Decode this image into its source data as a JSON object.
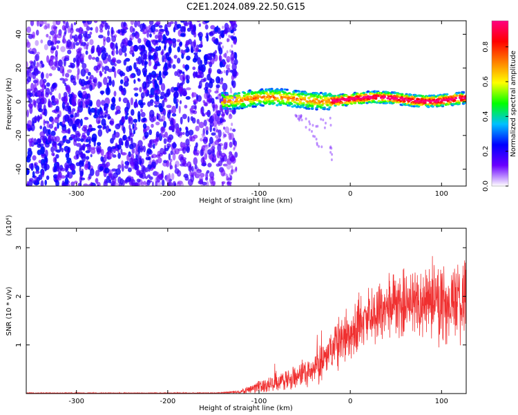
{
  "figure": {
    "title": "C2E1.2024.089.22.50.G15"
  },
  "chart_data": [
    {
      "type": "heatmap",
      "title": "C2E1.2024.089.22.50.G15",
      "xlabel": "Height of straight line (km)",
      "ylabel": "Frequency (Hz)",
      "xlim": [
        -355,
        127
      ],
      "ylim": [
        -50,
        48
      ],
      "x_ticks": [
        -300,
        -200,
        -100,
        0,
        100
      ],
      "y_ticks": [
        -40,
        -20,
        0,
        20,
        40
      ],
      "x_tick_labels": [
        "-300",
        "-200",
        "-100",
        "0",
        "100"
      ],
      "y_tick_labels": [
        "-40",
        "-20",
        "0",
        "20",
        "40"
      ],
      "colorbar": {
        "label": "Normalized spectral amplitude",
        "range": [
          0,
          0.95
        ],
        "ticks": [
          0.0,
          0.2,
          0.4,
          0.6,
          0.8
        ],
        "tick_labels": [
          "0.0",
          "0.2",
          "0.4",
          "0.6",
          "0.8"
        ],
        "colormap": [
          "#ffffff",
          "#6a00ff",
          "#0000ff",
          "#00c0ff",
          "#00ff00",
          "#ffff00",
          "#ff8000",
          "#ff0000",
          "#ff0080"
        ]
      },
      "regions": [
        {
          "x_range": [
            -355,
            -140
          ],
          "y_range": [
            -50,
            48
          ],
          "description_values": "broadband noise, amplitude 0.0-0.2"
        },
        {
          "x_range": [
            -140,
            127
          ],
          "y_range": [
            -5,
            6
          ],
          "description_values": "narrow signal band centered near 0-2 Hz, amplitude 0.3-0.95"
        }
      ],
      "grid": false
    },
    {
      "type": "line",
      "xlabel": "Height of straight line (km)",
      "ylabel": "SNR (10 * v/v)",
      "y_multiplier": "(x10⁴)",
      "xlim": [
        -355,
        127
      ],
      "ylim": [
        0,
        3.4
      ],
      "x_ticks": [
        -300,
        -200,
        -100,
        0,
        100
      ],
      "y_ticks": [
        1,
        2,
        3
      ],
      "x_tick_labels": [
        "-300",
        "-200",
        "-100",
        "0",
        "100"
      ],
      "y_tick_labels": [
        "1",
        "2",
        "3"
      ],
      "series_color": "#f03030",
      "envelope": [
        {
          "x": -355,
          "mean": 0.01,
          "spread": 0.01
        },
        {
          "x": -150,
          "mean": 0.01,
          "spread": 0.01
        },
        {
          "x": -120,
          "mean": 0.03,
          "spread": 0.03
        },
        {
          "x": -100,
          "mean": 0.15,
          "spread": 0.12
        },
        {
          "x": -80,
          "mean": 0.25,
          "spread": 0.18
        },
        {
          "x": -60,
          "mean": 0.35,
          "spread": 0.22
        },
        {
          "x": -40,
          "mean": 0.5,
          "spread": 0.3
        },
        {
          "x": -20,
          "mean": 0.9,
          "spread": 0.5
        },
        {
          "x": 0,
          "mean": 1.3,
          "spread": 0.5
        },
        {
          "x": 20,
          "mean": 1.6,
          "spread": 0.5
        },
        {
          "x": 50,
          "mean": 1.8,
          "spread": 0.6
        },
        {
          "x": 80,
          "mean": 1.9,
          "spread": 0.7
        },
        {
          "x": 100,
          "mean": 1.9,
          "spread": 0.8
        },
        {
          "x": 127,
          "mean": 1.85,
          "spread": 0.7
        }
      ],
      "grid": false
    }
  ]
}
